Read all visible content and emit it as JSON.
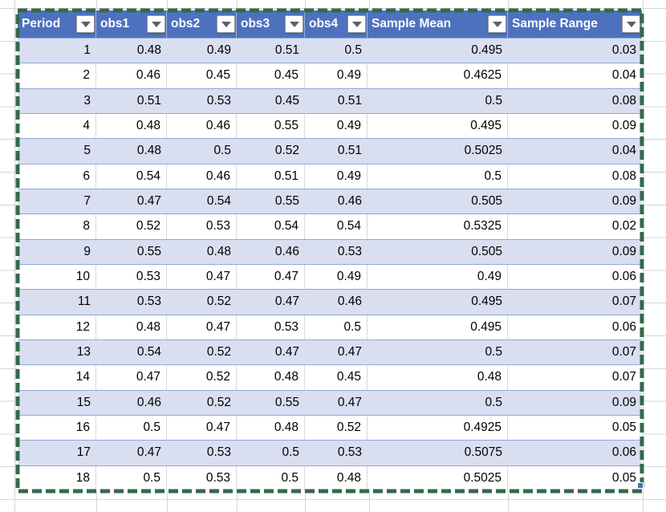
{
  "app": {
    "description": "Excel worksheet with formatted table"
  },
  "table": {
    "columns": [
      {
        "label": "Period"
      },
      {
        "label": "obs1"
      },
      {
        "label": "obs2"
      },
      {
        "label": "obs3"
      },
      {
        "label": "obs4"
      },
      {
        "label": "Sample Mean"
      },
      {
        "label": "Sample Range"
      }
    ],
    "rows": [
      [
        "1",
        "0.48",
        "0.49",
        "0.51",
        "0.5",
        "0.495",
        "0.03"
      ],
      [
        "2",
        "0.46",
        "0.45",
        "0.45",
        "0.49",
        "0.4625",
        "0.04"
      ],
      [
        "3",
        "0.51",
        "0.53",
        "0.45",
        "0.51",
        "0.5",
        "0.08"
      ],
      [
        "4",
        "0.48",
        "0.46",
        "0.55",
        "0.49",
        "0.495",
        "0.09"
      ],
      [
        "5",
        "0.48",
        "0.5",
        "0.52",
        "0.51",
        "0.5025",
        "0.04"
      ],
      [
        "6",
        "0.54",
        "0.46",
        "0.51",
        "0.49",
        "0.5",
        "0.08"
      ],
      [
        "7",
        "0.47",
        "0.54",
        "0.55",
        "0.46",
        "0.505",
        "0.09"
      ],
      [
        "8",
        "0.52",
        "0.53",
        "0.54",
        "0.54",
        "0.5325",
        "0.02"
      ],
      [
        "9",
        "0.55",
        "0.48",
        "0.46",
        "0.53",
        "0.505",
        "0.09"
      ],
      [
        "10",
        "0.53",
        "0.47",
        "0.47",
        "0.49",
        "0.49",
        "0.06"
      ],
      [
        "11",
        "0.53",
        "0.52",
        "0.47",
        "0.46",
        "0.495",
        "0.07"
      ],
      [
        "12",
        "0.48",
        "0.47",
        "0.53",
        "0.5",
        "0.495",
        "0.06"
      ],
      [
        "13",
        "0.54",
        "0.52",
        "0.47",
        "0.47",
        "0.5",
        "0.07"
      ],
      [
        "14",
        "0.47",
        "0.52",
        "0.48",
        "0.45",
        "0.48",
        "0.07"
      ],
      [
        "15",
        "0.46",
        "0.52",
        "0.55",
        "0.47",
        "0.5",
        "0.09"
      ],
      [
        "16",
        "0.5",
        "0.47",
        "0.48",
        "0.52",
        "0.4925",
        "0.05"
      ],
      [
        "17",
        "0.47",
        "0.53",
        "0.5",
        "0.53",
        "0.5075",
        "0.06"
      ],
      [
        "18",
        "0.5",
        "0.53",
        "0.5",
        "0.48",
        "0.5025",
        "0.05"
      ]
    ]
  },
  "icons": {
    "filter_dropdown": "filter-dropdown-icon",
    "resize_handle": "table-resize-handle"
  },
  "colors": {
    "header_bg": "#4e71be",
    "band_bg": "#d9dff0",
    "row_border": "#8ea9db",
    "white_row_gridline": "#d9d9d9",
    "sheet_gridline": "#d5d5d5",
    "marquee_green": "#35684a",
    "handle_blue": "#4472c4",
    "header_text": "#ffffff",
    "cell_text": "#000000"
  }
}
